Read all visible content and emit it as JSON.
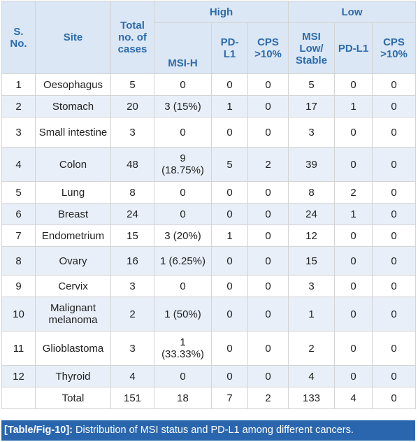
{
  "headers": {
    "sno": "S. No.",
    "site": "Site",
    "total": "Total no. of cases",
    "group_high": "High",
    "group_low": "Low",
    "msi_h": "MSI-H",
    "pdl1_high": "PD-L1",
    "cps_high": "CPS >10%",
    "msi_low": "MSI Low/ Stable",
    "pdl1_low": "PD-L1",
    "cps_low": "CPS >10%"
  },
  "rows": [
    {
      "sno": "1",
      "site": "Oesophagus",
      "total": "5",
      "msi_h": "0",
      "pdl1_high": "0",
      "cps_high": "0",
      "msi_low": "5",
      "pdl1_low": "0",
      "cps_low": "0"
    },
    {
      "sno": "2",
      "site": "Stomach",
      "total": "20",
      "msi_h": "3 (15%)",
      "pdl1_high": "1",
      "cps_high": "0",
      "msi_low": "17",
      "pdl1_low": "1",
      "cps_low": "0"
    },
    {
      "sno": "3",
      "site": "Small intestine",
      "total": "3",
      "msi_h": "0",
      "pdl1_high": "0",
      "cps_high": "0",
      "msi_low": "3",
      "pdl1_low": "0",
      "cps_low": "0"
    },
    {
      "sno": "4",
      "site": "Colon",
      "total": "48",
      "msi_h": "9 (18.75%)",
      "pdl1_high": "5",
      "cps_high": "2",
      "msi_low": "39",
      "pdl1_low": "0",
      "cps_low": "0"
    },
    {
      "sno": "5",
      "site": "Lung",
      "total": "8",
      "msi_h": "0",
      "pdl1_high": "0",
      "cps_high": "0",
      "msi_low": "8",
      "pdl1_low": "2",
      "cps_low": "0"
    },
    {
      "sno": "6",
      "site": "Breast",
      "total": "24",
      "msi_h": "0",
      "pdl1_high": "0",
      "cps_high": "0",
      "msi_low": "24",
      "pdl1_low": "1",
      "cps_low": "0"
    },
    {
      "sno": "7",
      "site": "Endometrium",
      "total": "15",
      "msi_h": "3 (20%)",
      "pdl1_high": "1",
      "cps_high": "0",
      "msi_low": "12",
      "pdl1_low": "0",
      "cps_low": "0"
    },
    {
      "sno": "8",
      "site": "Ovary",
      "total": "16",
      "msi_h": "1 (6.25%)",
      "pdl1_high": "0",
      "cps_high": "0",
      "msi_low": "15",
      "pdl1_low": "0",
      "cps_low": "0"
    },
    {
      "sno": "9",
      "site": "Cervix",
      "total": "3",
      "msi_h": "0",
      "pdl1_high": "0",
      "cps_high": "0",
      "msi_low": "3",
      "pdl1_low": "0",
      "cps_low": "0"
    },
    {
      "sno": "10",
      "site": "Malignant melanoma",
      "total": "2",
      "msi_h": "1 (50%)",
      "pdl1_high": "0",
      "cps_high": "0",
      "msi_low": "1",
      "pdl1_low": "0",
      "cps_low": "0"
    },
    {
      "sno": "11",
      "site": "Glioblastoma",
      "total": "3",
      "msi_h": "1 (33.33%)",
      "pdl1_high": "0",
      "cps_high": "0",
      "msi_low": "2",
      "pdl1_low": "0",
      "cps_low": "0"
    },
    {
      "sno": "12",
      "site": "Thyroid",
      "total": "4",
      "msi_h": "0",
      "pdl1_high": "0",
      "cps_high": "0",
      "msi_low": "4",
      "pdl1_low": "0",
      "cps_low": "0"
    },
    {
      "sno": "",
      "site": "Total",
      "total": "151",
      "msi_h": "18",
      "pdl1_high": "7",
      "cps_high": "2",
      "msi_low": "133",
      "pdl1_low": "4",
      "cps_low": "0"
    }
  ],
  "caption": {
    "ref": "[Table/Fig-10]:",
    "text": "Distribution of MSI status and PD-L1 among different cancers."
  }
}
